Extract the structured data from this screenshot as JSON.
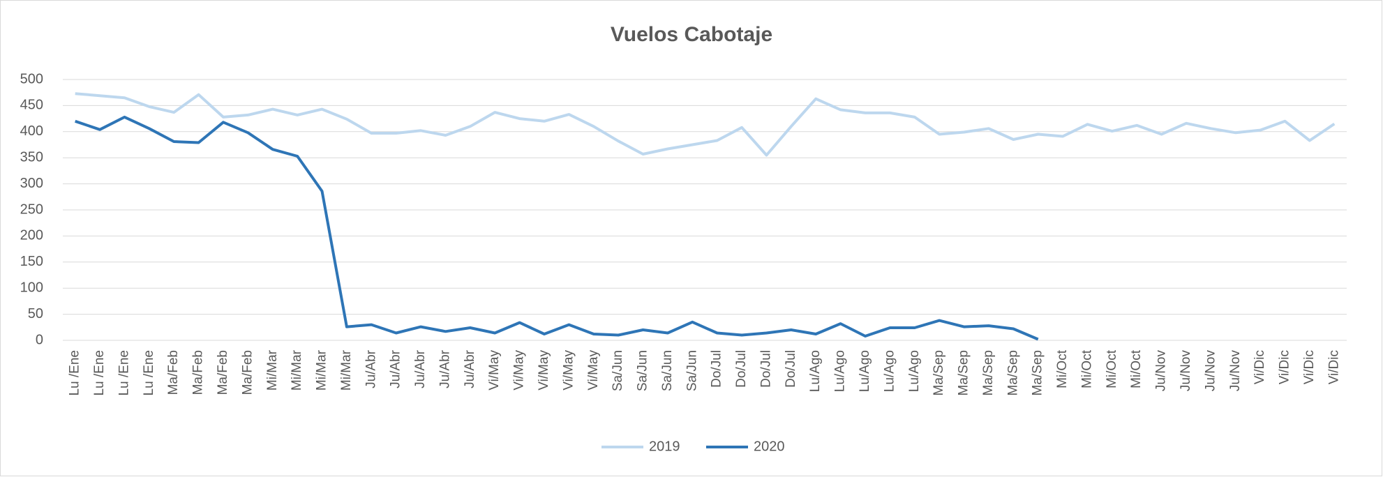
{
  "chart_data": {
    "type": "line",
    "title": "Vuelos Cabotaje",
    "categories": [
      "Lu /Ene",
      "Lu /Ene",
      "Lu /Ene",
      "Lu /Ene",
      "Ma/Feb",
      "Ma/Feb",
      "Ma/Feb",
      "Ma/Feb",
      "Mi/Mar",
      "Mi/Mar",
      "Mi/Mar",
      "Mi/Mar",
      "Ju/Abr",
      "Ju/Abr",
      "Ju/Abr",
      "Ju/Abr",
      "Ju/Abr",
      "Vi/May",
      "Vi/May",
      "Vi/May",
      "Vi/May",
      "Vi/May",
      "Sa/Jun",
      "Sa/Jun",
      "Sa/Jun",
      "Sa/Jun",
      "Do/Jul",
      "Do/Jul",
      "Do/Jul",
      "Do/Jul",
      "Lu/Ago",
      "Lu/Ago",
      "Lu/Ago",
      "Lu/Ago",
      "Lu/Ago",
      "Ma/Sep",
      "Ma/Sep",
      "Ma/Sep",
      "Ma/Sep",
      "Ma/Sep",
      "Mi/Oct",
      "Mi/Oct",
      "Mi/Oct",
      "Mi/Oct",
      "Ju/Nov",
      "Ju/Nov",
      "Ju/Nov",
      "Ju/Nov",
      "Vi/Dic",
      "Vi/Dic",
      "Vi/Dic",
      "Vi/Dic"
    ],
    "series": [
      {
        "name": "2019",
        "color": "#bdd7ee",
        "values": [
          473,
          469,
          465,
          448,
          437,
          471,
          428,
          432,
          443,
          432,
          443,
          424,
          397,
          397,
          402,
          393,
          410,
          437,
          425,
          420,
          433,
          410,
          382,
          357,
          367,
          375,
          383,
          408,
          355,
          410,
          463,
          442,
          436,
          436,
          428,
          395,
          399,
          406,
          385,
          395,
          391,
          414,
          401,
          412,
          395,
          416,
          406,
          398,
          403,
          420,
          383,
          415
        ]
      },
      {
        "name": "2020",
        "color": "#2e75b6",
        "values": [
          420,
          404,
          428,
          406,
          381,
          379,
          418,
          398,
          366,
          353,
          286,
          26,
          30,
          14,
          26,
          17,
          24,
          14,
          34,
          12,
          30,
          12,
          10,
          20,
          14,
          35,
          14,
          10,
          14,
          20,
          12,
          32,
          8,
          24,
          24,
          38,
          26,
          28,
          22,
          2,
          null,
          null,
          null,
          null,
          null,
          null,
          null,
          null,
          null,
          null,
          null,
          null
        ]
      }
    ],
    "ylim": [
      0,
      500
    ],
    "yticks": [
      0,
      50,
      100,
      150,
      200,
      250,
      300,
      350,
      400,
      450,
      500
    ],
    "grid": true,
    "legend": "bottom"
  }
}
